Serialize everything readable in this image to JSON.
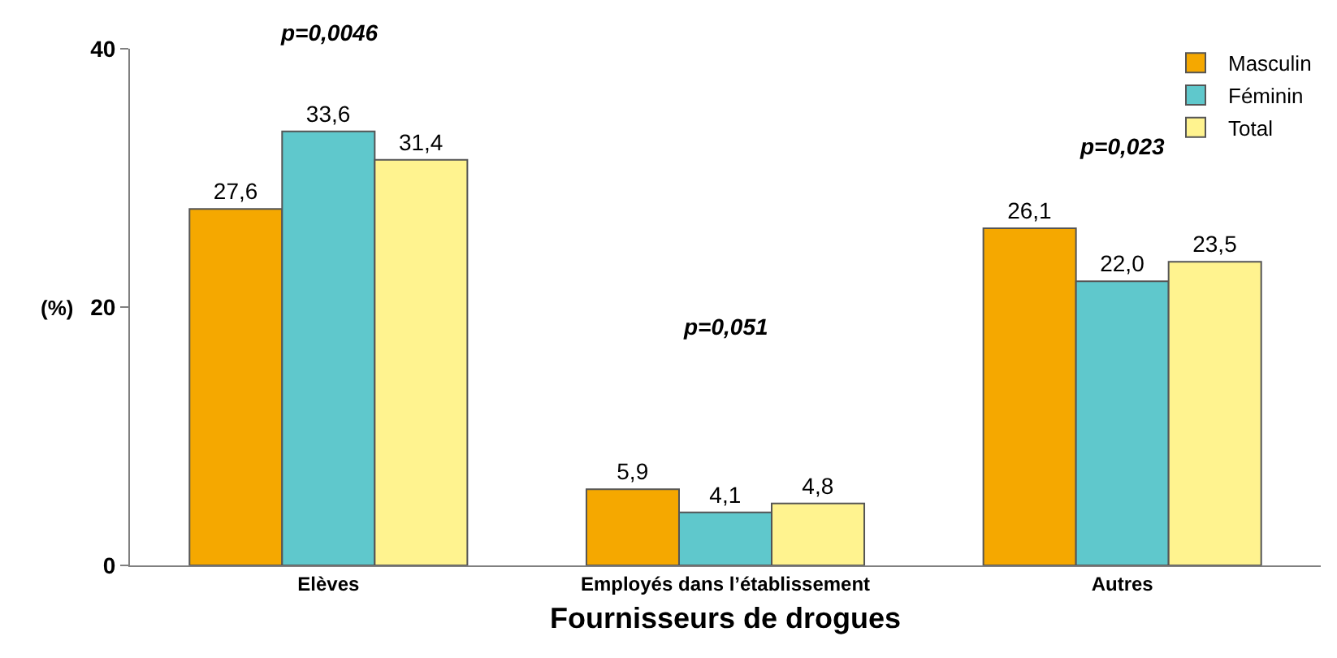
{
  "chart_data": {
    "type": "bar",
    "xlabel": "Fournisseurs de drogues",
    "ylabel": "(%)",
    "categories": [
      "Elèves",
      "Employés dans l’établissement",
      "Autres"
    ],
    "series": [
      {
        "name": "Masculin",
        "color": "#f5a800",
        "values": [
          27.6,
          5.9,
          26.1
        ],
        "value_labels": [
          "27,6",
          "5,9",
          "26,1"
        ]
      },
      {
        "name": "Féminin",
        "color": "#5fc8cc",
        "values": [
          33.6,
          4.1,
          22.0
        ],
        "value_labels": [
          "33,6",
          "4,1",
          "22,0"
        ]
      },
      {
        "name": "Total",
        "color": "#fff38f",
        "values": [
          31.4,
          4.8,
          23.5
        ],
        "value_labels": [
          "31,4",
          "4,8",
          "23,5"
        ]
      }
    ],
    "annotations": [
      "p=0,0046",
      "p=0,051",
      "p=0,023"
    ],
    "ylim": [
      0,
      40
    ],
    "yticks": [
      0,
      20,
      40
    ],
    "legend": "top right"
  }
}
